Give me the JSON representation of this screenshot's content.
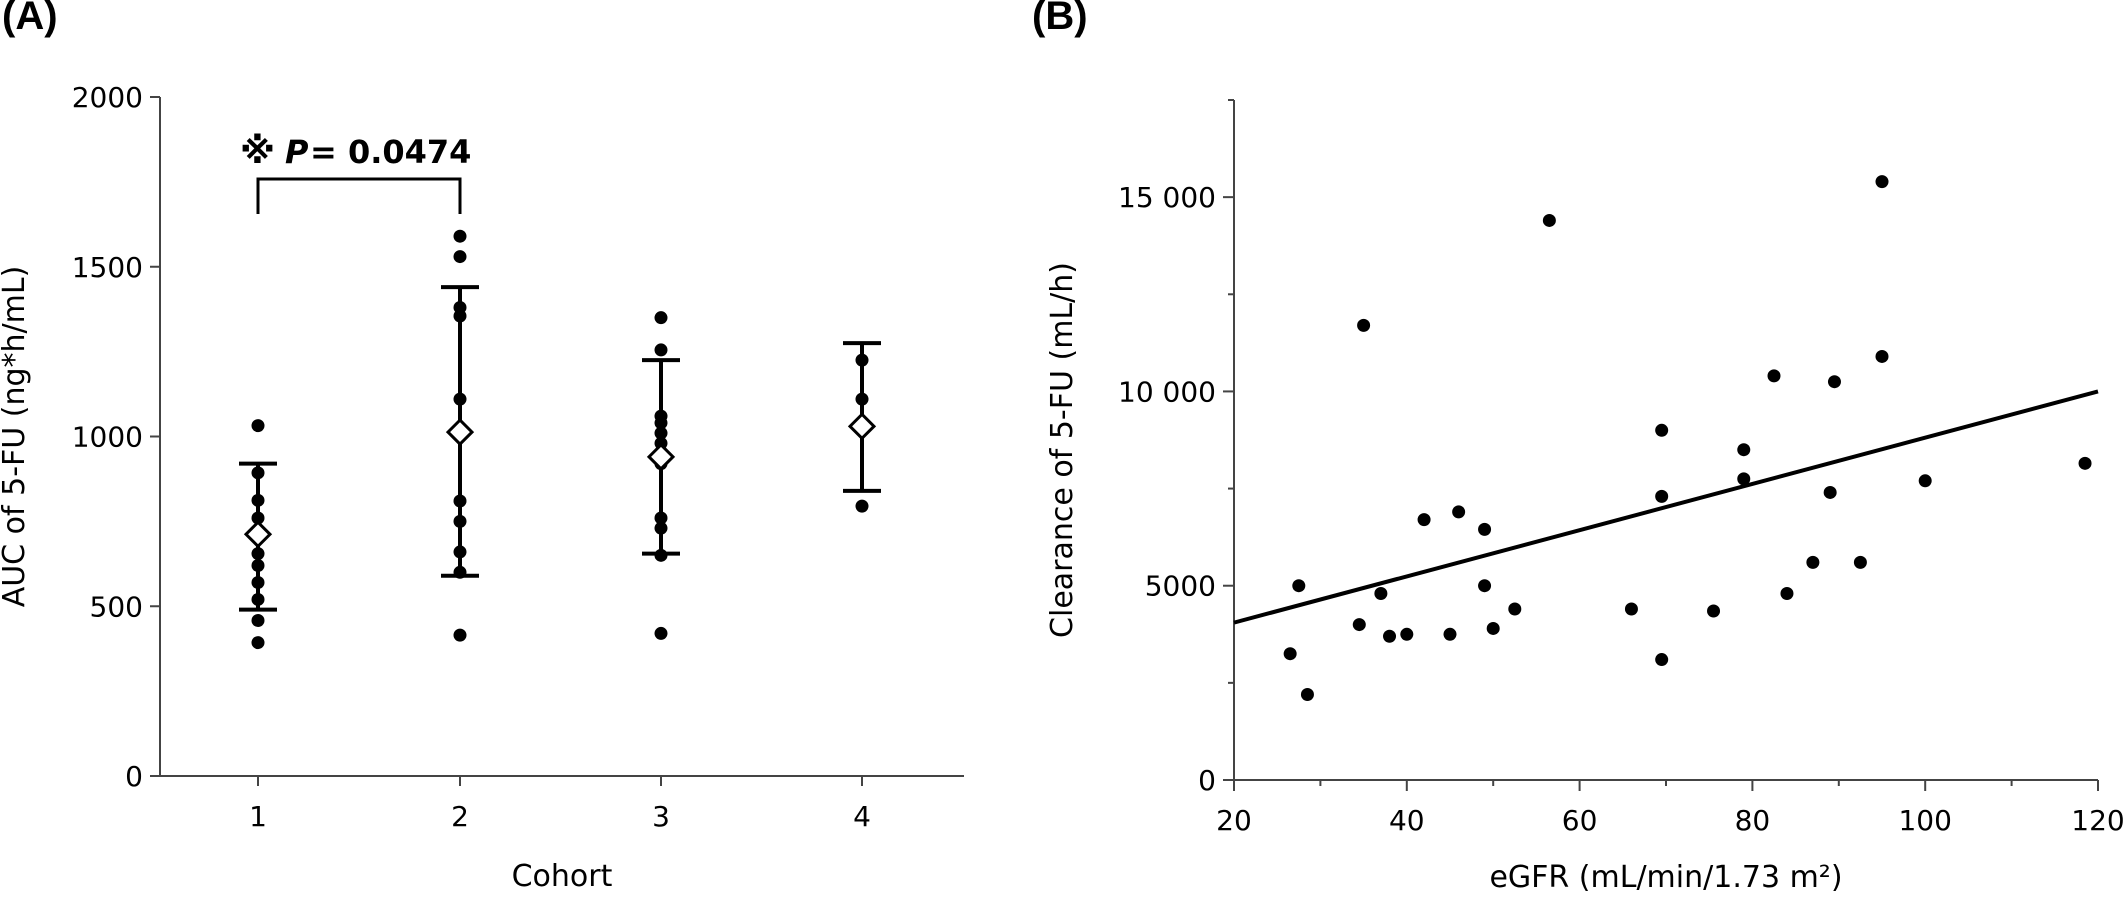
{
  "panels": {
    "a_label": "(A)",
    "b_label": "(B)"
  },
  "chart_data": [
    {
      "type": "scatter",
      "panel": "(A)",
      "title": "",
      "xlabel": "Cohort",
      "ylabel": "AUC of 5-FU (ng*h/mL)",
      "categories": [
        "1",
        "2",
        "3",
        "4"
      ],
      "ylim": [
        0,
        2000
      ],
      "yticks": [
        0,
        500,
        1000,
        1500,
        2000
      ],
      "points": [
        [
          1032,
          893,
          812,
          760,
          705,
          655,
          620,
          570,
          520,
          458,
          393
        ],
        [
          1590,
          1530,
          1380,
          1355,
          1110,
          1005,
          810,
          750,
          660,
          600,
          415
        ],
        [
          1350,
          1255,
          1060,
          1040,
          1010,
          980,
          920,
          760,
          730,
          650,
          420
        ],
        [
          1225,
          1110,
          795
        ]
      ],
      "means": [
        712,
        1013,
        940,
        1030
      ],
      "sd_upper": [
        920,
        1440,
        1225,
        1275
      ],
      "sd_lower": [
        490,
        590,
        655,
        840
      ],
      "annotation": {
        "symbol": "※",
        "p_label": "P",
        "p_value": "= 0.0474",
        "between": [
          "1",
          "2"
        ]
      }
    },
    {
      "type": "scatter",
      "panel": "(B)",
      "title": "",
      "xlabel": "eGFR (mL/min/1.73 m²)",
      "ylabel": "Clearance of 5-FU (mL/h)",
      "xlim": [
        20,
        120
      ],
      "ylim": [
        0,
        17500
      ],
      "xticks": [
        20,
        40,
        60,
        80,
        100,
        120
      ],
      "yticks": [
        0,
        5000,
        10000,
        15000
      ],
      "ytick_labels": [
        "0",
        "5000",
        "10 000",
        "15 000"
      ],
      "points": [
        [
          26.5,
          3250
        ],
        [
          27.5,
          5000
        ],
        [
          28.5,
          2200
        ],
        [
          34.5,
          4000
        ],
        [
          35,
          11700
        ],
        [
          37,
          4800
        ],
        [
          38,
          3700
        ],
        [
          40,
          3750
        ],
        [
          42,
          6700
        ],
        [
          45,
          3750
        ],
        [
          46,
          6900
        ],
        [
          49,
          5000
        ],
        [
          49,
          6450
        ],
        [
          50,
          3900
        ],
        [
          52.5,
          4400
        ],
        [
          56.5,
          14400
        ],
        [
          66,
          4400
        ],
        [
          69.5,
          7300
        ],
        [
          69.5,
          3100
        ],
        [
          69.5,
          9000
        ],
        [
          75.5,
          4350
        ],
        [
          79,
          8500
        ],
        [
          79,
          7750
        ],
        [
          82.5,
          10400
        ],
        [
          84,
          4800
        ],
        [
          87,
          5600
        ],
        [
          89,
          7400
        ],
        [
          89.5,
          10250
        ],
        [
          92.5,
          5600
        ],
        [
          95,
          15400
        ],
        [
          95,
          10900
        ],
        [
          100,
          7700
        ],
        [
          118.5,
          8150
        ]
      ],
      "regression": {
        "x1": 20,
        "y1": 4050,
        "x2": 120,
        "y2": 10000
      }
    }
  ]
}
